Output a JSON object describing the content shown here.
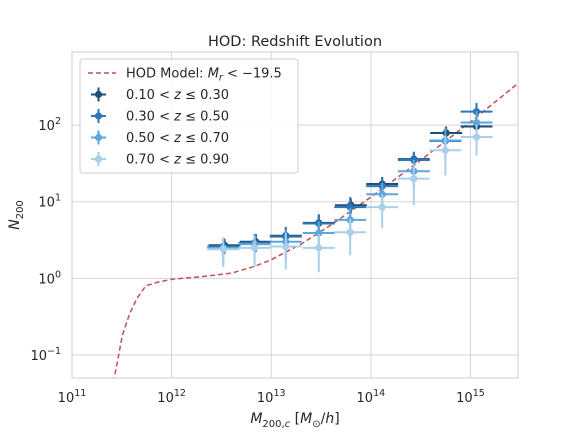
{
  "chart_data": {
    "type": "scatter",
    "title": "HOD: Redshift Evolution",
    "xlabel": "M_{200,c} [M_⊙/h]",
    "ylabel": "N_{200}",
    "xscale": "log",
    "yscale": "log",
    "xlim": [
      100000000000.0,
      3000000000000000.0
    ],
    "ylim": [
      0.05,
      900
    ],
    "grid": true,
    "legend_position": "top-left",
    "x_ticks": [
      {
        "value": 100000000000.0,
        "base": "10",
        "exp": "11"
      },
      {
        "value": 1000000000000.0,
        "base": "10",
        "exp": "12"
      },
      {
        "value": 10000000000000.0,
        "base": "10",
        "exp": "13"
      },
      {
        "value": 100000000000000.0,
        "base": "10",
        "exp": "14"
      },
      {
        "value": 1000000000000000.0,
        "base": "10",
        "exp": "15"
      }
    ],
    "y_ticks": [
      {
        "value": 0.1,
        "base": "10",
        "exp": "−1"
      },
      {
        "value": 1,
        "base": "10",
        "exp": "0"
      },
      {
        "value": 10,
        "base": "10",
        "exp": "1"
      },
      {
        "value": 100,
        "base": "10",
        "exp": "2"
      }
    ],
    "model": {
      "name": "HOD Model: M_r < −19.5",
      "color": "#c44e52",
      "style": "dashed",
      "x": [
        250000000000.0,
        280000000000.0,
        320000000000.0,
        380000000000.0,
        450000000000.0,
        550000000000.0,
        700000000000.0,
        1000000000000.0,
        2000000000000.0,
        4000000000000.0,
        7000000000000.0,
        10000000000000.0,
        20000000000000.0,
        40000000000000.0,
        100000000000000.0,
        300000000000000.0,
        1000000000000000.0,
        3000000000000000.0
      ],
      "y": [
        0.035,
        0.07,
        0.18,
        0.35,
        0.55,
        0.8,
        0.88,
        0.97,
        1.05,
        1.17,
        1.45,
        1.75,
        2.8,
        5.0,
        11.5,
        33,
        110,
        350
      ]
    },
    "series": [
      {
        "name": "0.10 < z ≤ 0.30",
        "color": "#1f4e79",
        "x": [
          3400000000000.0,
          7000000000000.0,
          14000000000000.0,
          30000000000000.0,
          63000000000000.0,
          130000000000000.0,
          270000000000000.0,
          570000000000000.0,
          1150000000000000.0
        ],
        "y": [
          2.7,
          3.0,
          3.6,
          5.3,
          9.0,
          17.0,
          36.0,
          79.0,
          96.0
        ],
        "yerr": [
          0.6,
          0.8,
          1.0,
          1.3,
          2.0,
          4.0,
          8.0,
          17.0,
          25.0
        ],
        "xerr_dex": 0.16
      },
      {
        "name": "0.30 < z ≤ 0.50",
        "color": "#2e75b6",
        "x": [
          3300000000000.0,
          6800000000000.0,
          14000000000000.0,
          30000000000000.0,
          62000000000000.0,
          130000000000000.0,
          270000000000000.0,
          560000000000000.0,
          1150000000000000.0
        ],
        "y": [
          2.6,
          2.9,
          3.5,
          5.2,
          8.5,
          16.0,
          35.0,
          62.0,
          150.0
        ],
        "yerr": [
          0.7,
          0.9,
          1.2,
          1.7,
          3.0,
          4.0,
          10.0,
          19.0,
          45.0
        ],
        "xerr_dex": 0.16
      },
      {
        "name": "0.50 < z ≤ 0.70",
        "color": "#5ba6dc",
        "x": [
          3300000000000.0,
          6800000000000.0,
          14000000000000.0,
          30000000000000.0,
          62000000000000.0,
          130000000000000.0,
          270000000000000.0,
          560000000000000.0,
          1150000000000000.0
        ],
        "y": [
          2.5,
          2.8,
          3.0,
          3.9,
          5.8,
          12.5,
          25.0,
          63.0,
          108.0
        ],
        "yerr": [
          0.9,
          1.0,
          1.3,
          1.6,
          2.5,
          5.0,
          10.0,
          30.0,
          45.0
        ],
        "xerr_dex": 0.16
      },
      {
        "name": "0.70 < z ≤ 0.90",
        "color": "#a9cfeb",
        "x": [
          3300000000000.0,
          6800000000000.0,
          14000000000000.0,
          30000000000000.0,
          62000000000000.0,
          130000000000000.0,
          270000000000000.0,
          560000000000000.0,
          1150000000000000.0
        ],
        "y": [
          2.4,
          2.5,
          2.6,
          2.5,
          4.0,
          8.5,
          20.0,
          47.0,
          70.0
        ],
        "yerr": [
          1.0,
          1.1,
          1.3,
          1.3,
          2.0,
          4.0,
          11.0,
          25.0,
          30.0
        ],
        "xerr_dex": 0.16
      }
    ]
  }
}
